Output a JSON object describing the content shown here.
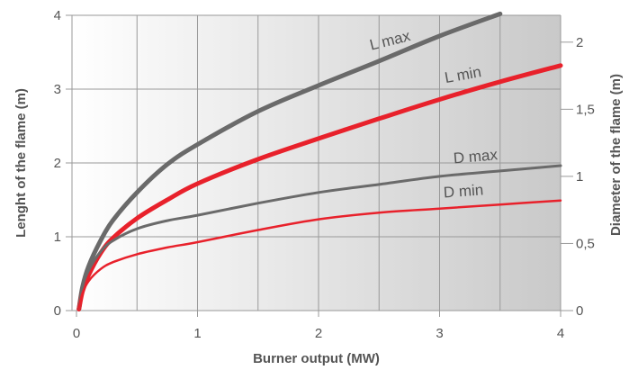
{
  "chart_data": {
    "type": "line",
    "xlabel": "Burner output (MW)",
    "ylabel": "Lenght of the flame (m)",
    "y2label": "Diameter of the flame (m)",
    "x_ticks": [
      "0",
      "1",
      "2",
      "3",
      "4"
    ],
    "y_ticks": [
      "0",
      "1",
      "2",
      "3",
      "4"
    ],
    "y2_ticks": [
      "0",
      "0,5",
      "1",
      "1,5",
      "2"
    ],
    "xlim": [
      0,
      4
    ],
    "ylim": [
      0,
      4
    ],
    "y2lim": [
      0,
      2.2
    ],
    "grid": true,
    "colors": {
      "grey": "#6a6a6a",
      "red": "#e8212b",
      "grid": "#999999"
    },
    "series": [
      {
        "name": "L max",
        "axis": "left",
        "color": "#6a6a6a",
        "weight": "heavy",
        "x": [
          0.02,
          0.05,
          0.1,
          0.2,
          0.3,
          0.5,
          0.75,
          1,
          1.5,
          2,
          2.5,
          3,
          3.5
        ],
        "y": [
          0.02,
          0.32,
          0.6,
          0.95,
          1.22,
          1.6,
          1.98,
          2.25,
          2.7,
          3.05,
          3.38,
          3.72,
          4.02
        ]
      },
      {
        "name": "L min",
        "axis": "left",
        "color": "#e8212b",
        "weight": "heavy",
        "x": [
          0.02,
          0.05,
          0.1,
          0.2,
          0.3,
          0.5,
          0.75,
          1,
          1.5,
          2,
          2.5,
          3,
          3.5,
          4
        ],
        "y": [
          0.02,
          0.26,
          0.48,
          0.78,
          0.98,
          1.25,
          1.5,
          1.72,
          2.05,
          2.33,
          2.6,
          2.86,
          3.1,
          3.32
        ]
      },
      {
        "name": "D max",
        "axis": "right",
        "color": "#6a6a6a",
        "weight": "medium",
        "x": [
          0.02,
          0.05,
          0.1,
          0.2,
          0.3,
          0.5,
          0.75,
          1,
          1.5,
          2,
          2.5,
          3,
          3.5,
          4
        ],
        "y": [
          0.02,
          0.18,
          0.3,
          0.44,
          0.52,
          0.61,
          0.67,
          0.71,
          0.8,
          0.88,
          0.94,
          1.0,
          1.04,
          1.08
        ]
      },
      {
        "name": "D min",
        "axis": "right",
        "color": "#e8212b",
        "weight": "light",
        "x": [
          0.02,
          0.05,
          0.1,
          0.2,
          0.3,
          0.5,
          0.75,
          1,
          1.5,
          2,
          2.5,
          3,
          3.5,
          4
        ],
        "y": [
          0.02,
          0.13,
          0.22,
          0.31,
          0.36,
          0.42,
          0.47,
          0.51,
          0.6,
          0.68,
          0.73,
          0.76,
          0.79,
          0.82
        ]
      }
    ]
  }
}
